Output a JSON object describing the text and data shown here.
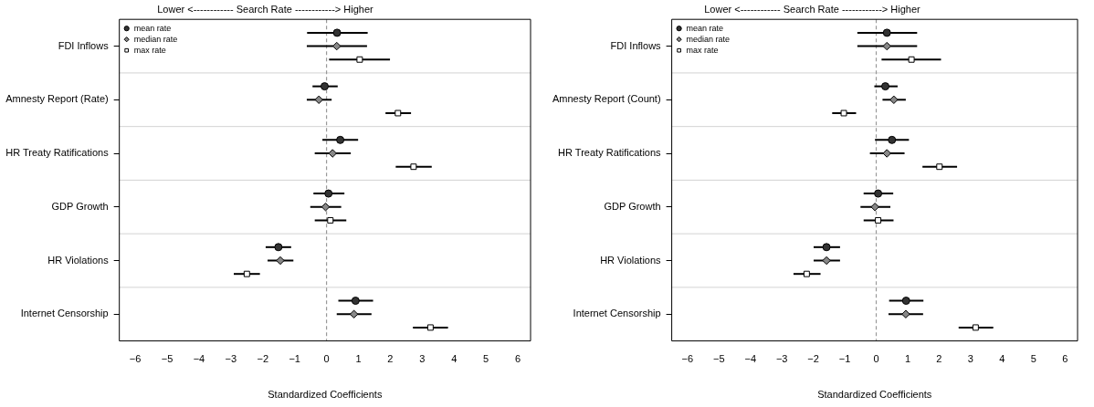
{
  "chart_data": [
    {
      "type": "scatter",
      "orientation": "horizontal",
      "title": "Lower <------------ Search Rate ------------> Higher",
      "xlabel": "Standardized Coefficients",
      "categories": [
        "FDI Inflows",
        "Amnesty Report (Rate)",
        "HR Treaty Ratifications",
        "GDP Growth",
        "HR Violations",
        "Internet Censorship"
      ],
      "xlim": [
        -6.5,
        6.4
      ],
      "xticks": [
        -6,
        -5,
        -4,
        -3,
        -2,
        -1,
        0,
        1,
        2,
        3,
        4,
        5,
        6
      ],
      "grid": "y",
      "legend": "top left",
      "ref_lines": [
        {
          "axis": "x",
          "value": 0,
          "color": "#999999",
          "line_style": "dashed"
        }
      ],
      "series": [
        {
          "name": "mean rate",
          "color": "#333333",
          "marker": "circle",
          "values": [
            0.33,
            -0.06,
            0.43,
            0.06,
            -1.51,
            0.91
          ],
          "errors": [
            [
              -0.61,
              1.29
            ],
            [
              -0.44,
              0.35
            ],
            [
              -0.13,
              0.99
            ],
            [
              -0.41,
              0.56
            ],
            [
              -1.91,
              -1.11
            ],
            [
              0.37,
              1.46
            ]
          ]
        },
        {
          "name": "median rate",
          "color": "#888888",
          "marker": "diamond",
          "values": [
            0.32,
            -0.24,
            0.19,
            -0.03,
            -1.45,
            0.86
          ],
          "errors": [
            [
              -0.62,
              1.27
            ],
            [
              -0.62,
              0.16
            ],
            [
              -0.37,
              0.76
            ],
            [
              -0.51,
              0.46
            ],
            [
              -1.85,
              -1.04
            ],
            [
              0.32,
              1.41
            ]
          ]
        },
        {
          "name": "max rate",
          "color": "#ffffff",
          "marker": "square",
          "values": [
            1.04,
            2.24,
            2.73,
            0.12,
            -2.5,
            3.26
          ],
          "errors": [
            [
              0.08,
              1.99
            ],
            [
              1.85,
              2.65
            ],
            [
              2.17,
              3.3
            ],
            [
              -0.37,
              0.62
            ],
            [
              -2.91,
              -2.09
            ],
            [
              2.71,
              3.81
            ]
          ]
        }
      ]
    },
    {
      "type": "scatter",
      "orientation": "horizontal",
      "title": "Lower <------------ Search Rate ------------> Higher",
      "xlabel": "Standardized Coefficients",
      "categories": [
        "FDI Inflows",
        "Amnesty Report (Count)",
        "HR Treaty Ratifications",
        "GDP Growth",
        "HR Violations",
        "Internet Censorship"
      ],
      "xlim": [
        -6.5,
        6.4
      ],
      "xticks": [
        -6,
        -5,
        -4,
        -3,
        -2,
        -1,
        0,
        1,
        2,
        3,
        4,
        5,
        6
      ],
      "grid": "y",
      "legend": "top left",
      "ref_lines": [
        {
          "axis": "x",
          "value": 0,
          "color": "#999999",
          "line_style": "dashed"
        }
      ],
      "series": [
        {
          "name": "mean rate",
          "color": "#333333",
          "marker": "circle",
          "values": [
            0.34,
            0.29,
            0.5,
            0.06,
            -1.58,
            0.95
          ],
          "errors": [
            [
              -0.6,
              1.3
            ],
            [
              -0.06,
              0.68
            ],
            [
              -0.04,
              1.04
            ],
            [
              -0.4,
              0.54
            ],
            [
              -1.99,
              -1.15
            ],
            [
              0.41,
              1.5
            ]
          ]
        },
        {
          "name": "median rate",
          "color": "#888888",
          "marker": "diamond",
          "values": [
            0.34,
            0.56,
            0.34,
            -0.04,
            -1.58,
            0.94
          ],
          "errors": [
            [
              -0.6,
              1.3
            ],
            [
              0.2,
              0.94
            ],
            [
              -0.2,
              0.9
            ],
            [
              -0.5,
              0.45
            ],
            [
              -1.99,
              -1.15
            ],
            [
              0.39,
              1.49
            ]
          ]
        },
        {
          "name": "max rate",
          "color": "#ffffff",
          "marker": "square",
          "values": [
            1.12,
            -1.03,
            2.01,
            0.06,
            -2.21,
            3.16
          ],
          "errors": [
            [
              0.17,
              2.06
            ],
            [
              -1.4,
              -0.64
            ],
            [
              1.47,
              2.57
            ],
            [
              -0.4,
              0.55
            ],
            [
              -2.63,
              -1.77
            ],
            [
              2.62,
              3.72
            ]
          ]
        }
      ]
    }
  ]
}
